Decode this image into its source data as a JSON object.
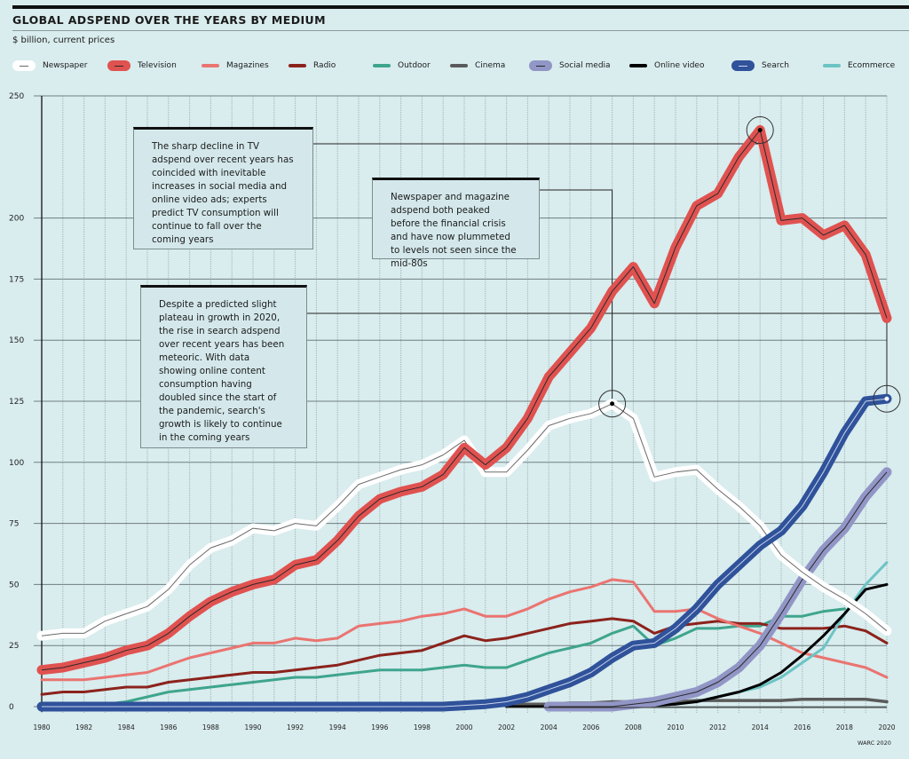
{
  "header": {
    "title": "GLOBAL ADSPEND OVER THE YEARS BY MEDIUM",
    "subtitle": "$ billion, current prices"
  },
  "source": "WARC 2020",
  "callouts": [
    {
      "id": "tv",
      "text": "The sharp decline in TV adspend over recent years has coincided with inevitable increases in social media and online video ads; experts predict TV consumption will continue to fall over the coming years",
      "points_to": {
        "series": "Television",
        "year": 2014
      }
    },
    {
      "id": "newspaper",
      "text": "Newspaper and magazine adspend both peaked before the financial crisis and have now plummeted to levels not seen since the mid-80s",
      "points_to": {
        "series": "Newspaper",
        "year": 2007
      }
    },
    {
      "id": "search",
      "text": "Despite a predicted slight plateau in growth in 2020, the rise in search adspend over recent years has been meteoric. With data showing online content consumption having doubled since the start of the pandemic, search's growth is likely to continue in the coming years",
      "points_to": {
        "series": "Search",
        "year": 2020
      }
    }
  ],
  "chart_data": {
    "type": "line",
    "title": "GLOBAL ADSPEND OVER THE YEARS BY MEDIUM",
    "subtitle": "$ billion, current prices",
    "xlabel": "",
    "ylabel": "$ billion, current prices",
    "xlim": [
      1980,
      2020
    ],
    "ylim": [
      0,
      250
    ],
    "yticks": [
      0,
      25,
      50,
      75,
      100,
      125,
      150,
      175,
      200,
      250
    ],
    "xticks": [
      1980,
      1982,
      1984,
      1986,
      1988,
      1990,
      1992,
      1994,
      1996,
      1998,
      2000,
      2002,
      2004,
      2006,
      2008,
      2010,
      2012,
      2014,
      2016,
      2018,
      2020
    ],
    "grid": true,
    "legend": "top",
    "x": [
      1980,
      1981,
      1982,
      1983,
      1984,
      1985,
      1986,
      1987,
      1988,
      1989,
      1990,
      1991,
      1992,
      1993,
      1994,
      1995,
      1996,
      1997,
      1998,
      1999,
      2000,
      2001,
      2002,
      2003,
      2004,
      2005,
      2006,
      2007,
      2008,
      2009,
      2010,
      2011,
      2012,
      2013,
      2014,
      2015,
      2016,
      2017,
      2018,
      2019,
      2020
    ],
    "series": [
      {
        "name": "Newspaper",
        "color": "#ffffff",
        "style": "wide",
        "values": [
          29,
          30,
          30,
          35,
          38,
          41,
          48,
          58,
          65,
          68,
          73,
          72,
          75,
          74,
          82,
          91,
          94,
          97,
          99,
          103,
          109,
          96,
          96,
          105,
          115,
          118,
          120,
          124,
          118,
          94,
          96,
          97,
          89,
          82,
          74,
          62,
          55,
          49,
          44,
          38,
          31
        ]
      },
      {
        "name": "Television",
        "color": "#e05250",
        "style": "wide",
        "values": [
          15,
          16,
          18,
          20,
          23,
          25,
          30,
          37,
          43,
          47,
          50,
          52,
          58,
          60,
          68,
          78,
          85,
          88,
          90,
          95,
          106,
          99,
          106,
          118,
          135,
          145,
          155,
          170,
          180,
          165,
          188,
          205,
          210,
          225,
          236,
          199,
          200,
          193,
          197,
          185,
          159
        ]
      },
      {
        "name": "Magazines",
        "color": "#ea7470",
        "style": "thin",
        "values": [
          11,
          11,
          11,
          12,
          13,
          14,
          17,
          20,
          22,
          24,
          26,
          26,
          28,
          27,
          28,
          33,
          34,
          35,
          37,
          38,
          40,
          37,
          37,
          40,
          44,
          47,
          49,
          52,
          51,
          39,
          39,
          40,
          36,
          33,
          30,
          26,
          22,
          20,
          18,
          16,
          12
        ]
      },
      {
        "name": "Radio",
        "color": "#8b231c",
        "style": "thin",
        "values": [
          5,
          6,
          6,
          7,
          8,
          8,
          10,
          11,
          12,
          13,
          14,
          14,
          15,
          16,
          17,
          19,
          21,
          22,
          23,
          26,
          29,
          27,
          28,
          30,
          32,
          34,
          35,
          36,
          35,
          30,
          33,
          34,
          35,
          34,
          34,
          32,
          32,
          32,
          33,
          31,
          26
        ]
      },
      {
        "name": "Outdoor",
        "color": "#3ea58d",
        "style": "thin",
        "values": [
          1,
          1,
          1,
          1,
          2,
          4,
          6,
          7,
          8,
          9,
          10,
          11,
          12,
          12,
          13,
          14,
          15,
          15,
          15,
          16,
          17,
          16,
          16,
          19,
          22,
          24,
          26,
          30,
          33,
          25,
          28,
          32,
          32,
          33,
          33,
          37,
          37,
          39,
          40,
          null,
          null
        ]
      },
      {
        "name": "Cinema",
        "color": "#5a5a5a",
        "style": "thin",
        "values": [
          0,
          0,
          0,
          0,
          0,
          0,
          0,
          0,
          0,
          0,
          0,
          0,
          0,
          0,
          0,
          0,
          0,
          0,
          0,
          0,
          0,
          0,
          1,
          1,
          1,
          1.5,
          1.5,
          2,
          2,
          2,
          2,
          2.5,
          2.5,
          2.5,
          2.5,
          2.5,
          3,
          3,
          3,
          3,
          2
        ]
      },
      {
        "name": "Social media",
        "color": "#9196c6",
        "style": "wide",
        "values": [
          null,
          null,
          null,
          null,
          null,
          null,
          null,
          null,
          null,
          null,
          null,
          null,
          null,
          null,
          null,
          null,
          null,
          null,
          null,
          null,
          null,
          null,
          null,
          null,
          0,
          0,
          0,
          0,
          1,
          2,
          4,
          6,
          10,
          16,
          25,
          38,
          52,
          64,
          73,
          86,
          96
        ]
      },
      {
        "name": "Online video",
        "color": "#000000",
        "style": "thin",
        "values": [
          null,
          null,
          null,
          null,
          null,
          null,
          null,
          null,
          null,
          null,
          null,
          null,
          null,
          null,
          null,
          null,
          null,
          null,
          null,
          null,
          null,
          null,
          0,
          0,
          0,
          0,
          0,
          0,
          0,
          0.5,
          1,
          2,
          4,
          6,
          9,
          14,
          21,
          29,
          38,
          48,
          50
        ]
      },
      {
        "name": "Search",
        "color": "#2f529a",
        "style": "wide",
        "values": [
          0,
          0,
          0,
          0,
          0,
          0,
          0,
          0,
          0,
          0,
          0,
          0,
          0,
          0,
          0,
          0,
          0,
          0,
          0,
          0,
          0.5,
          1,
          2,
          4,
          7,
          10,
          14,
          20,
          25,
          26,
          32,
          40,
          50,
          58,
          66,
          72,
          82,
          96,
          112,
          125,
          126
        ]
      },
      {
        "name": "Ecommerce",
        "color": "#6cc4c4",
        "style": "thin",
        "values": [
          null,
          null,
          null,
          null,
          null,
          null,
          null,
          null,
          null,
          null,
          null,
          null,
          null,
          null,
          null,
          null,
          null,
          null,
          null,
          null,
          null,
          null,
          null,
          null,
          null,
          null,
          null,
          null,
          null,
          null,
          null,
          2,
          4,
          6,
          8,
          12,
          18,
          24,
          38,
          50,
          59
        ]
      }
    ]
  }
}
